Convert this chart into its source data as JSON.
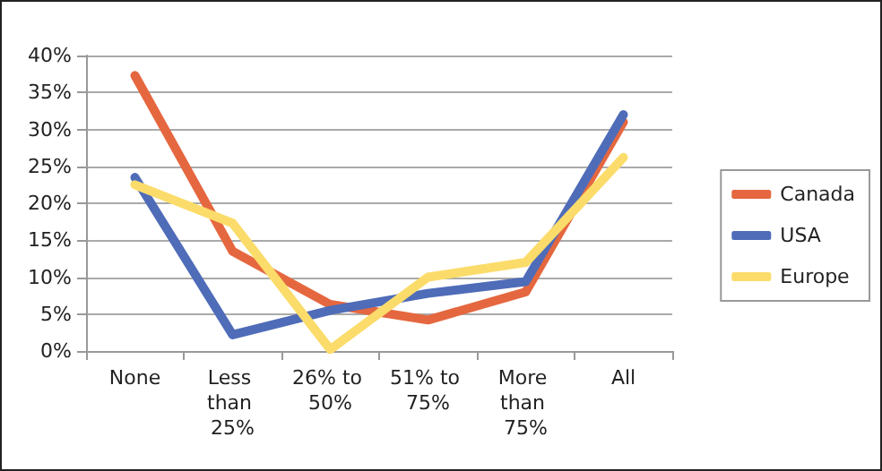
{
  "chart_data": {
    "type": "line",
    "categories": [
      "None",
      "Less than 25%",
      "26% to 50%",
      "51% to 75%",
      "More than 75%",
      "All"
    ],
    "series": [
      {
        "name": "Canada",
        "color": "#e5673f",
        "values": [
          37.3,
          13.5,
          6.3,
          4.2,
          8,
          31
        ]
      },
      {
        "name": "USA",
        "color": "#4f6cb8",
        "values": [
          23.5,
          2.2,
          5.5,
          7.8,
          9.4,
          32
        ]
      },
      {
        "name": "Europe",
        "color": "#fbdc6a",
        "values": [
          22.5,
          17.3,
          0.2,
          10,
          12,
          26.2
        ]
      }
    ],
    "ylim": [
      0,
      40
    ],
    "yticks": [
      {
        "value": 0,
        "label": "0%"
      },
      {
        "value": 5,
        "label": "5%"
      },
      {
        "value": 10,
        "label": "10%"
      },
      {
        "value": 15,
        "label": "15%"
      },
      {
        "value": 20,
        "label": "20%"
      },
      {
        "value": 25,
        "label": "25%"
      },
      {
        "value": 30,
        "label": "30%"
      },
      {
        "value": 35,
        "label": "35%"
      },
      {
        "value": 40,
        "label": "40%"
      }
    ],
    "grid": "y",
    "legend": "right",
    "marker": "none",
    "line_style": "solid"
  }
}
